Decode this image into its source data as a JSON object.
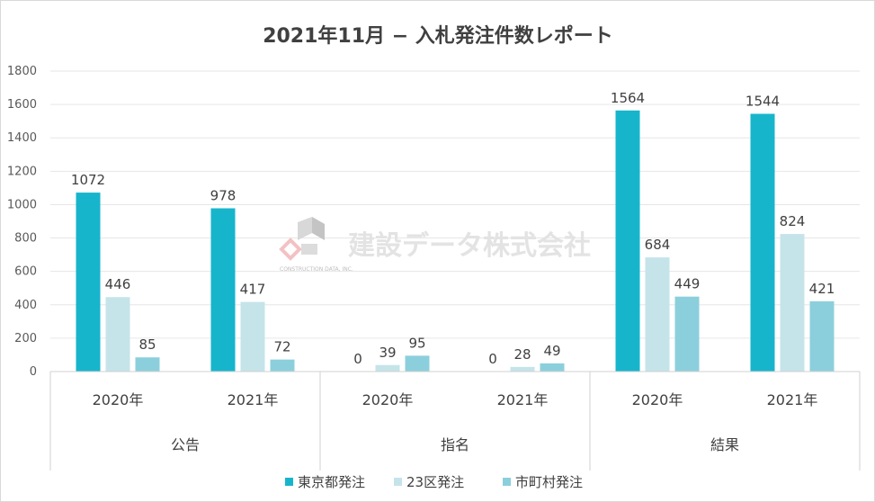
{
  "chart_data": {
    "type": "bar",
    "title": "2021年11月 − 入札発注件数レポート",
    "ylim": [
      0,
      1800
    ],
    "yticks": [
      0,
      200,
      400,
      600,
      800,
      1000,
      1200,
      1400,
      1600,
      1800
    ],
    "grid": true,
    "legend_position": "bottom",
    "groups": [
      {
        "label": "公告",
        "subcategories": [
          "2020年",
          "2021年"
        ]
      },
      {
        "label": "指名",
        "subcategories": [
          "2020年",
          "2021年"
        ]
      },
      {
        "label": "結果",
        "subcategories": [
          "2020年",
          "2021年"
        ]
      }
    ],
    "series": [
      {
        "name": "東京都発注",
        "color": "#17b5cc",
        "values": [
          1072,
          978,
          0,
          0,
          1564,
          1544
        ]
      },
      {
        "name": "23区発注",
        "color": "#c5e4ea",
        "values": [
          446,
          417,
          39,
          28,
          684,
          824
        ]
      },
      {
        "name": "市町村発注",
        "color": "#8ccfdc",
        "values": [
          85,
          72,
          95,
          49,
          449,
          421
        ]
      }
    ]
  },
  "watermark": {
    "text": "建設データ株式会社",
    "logo_text": "CONSTRUCTION DATA, INC."
  }
}
